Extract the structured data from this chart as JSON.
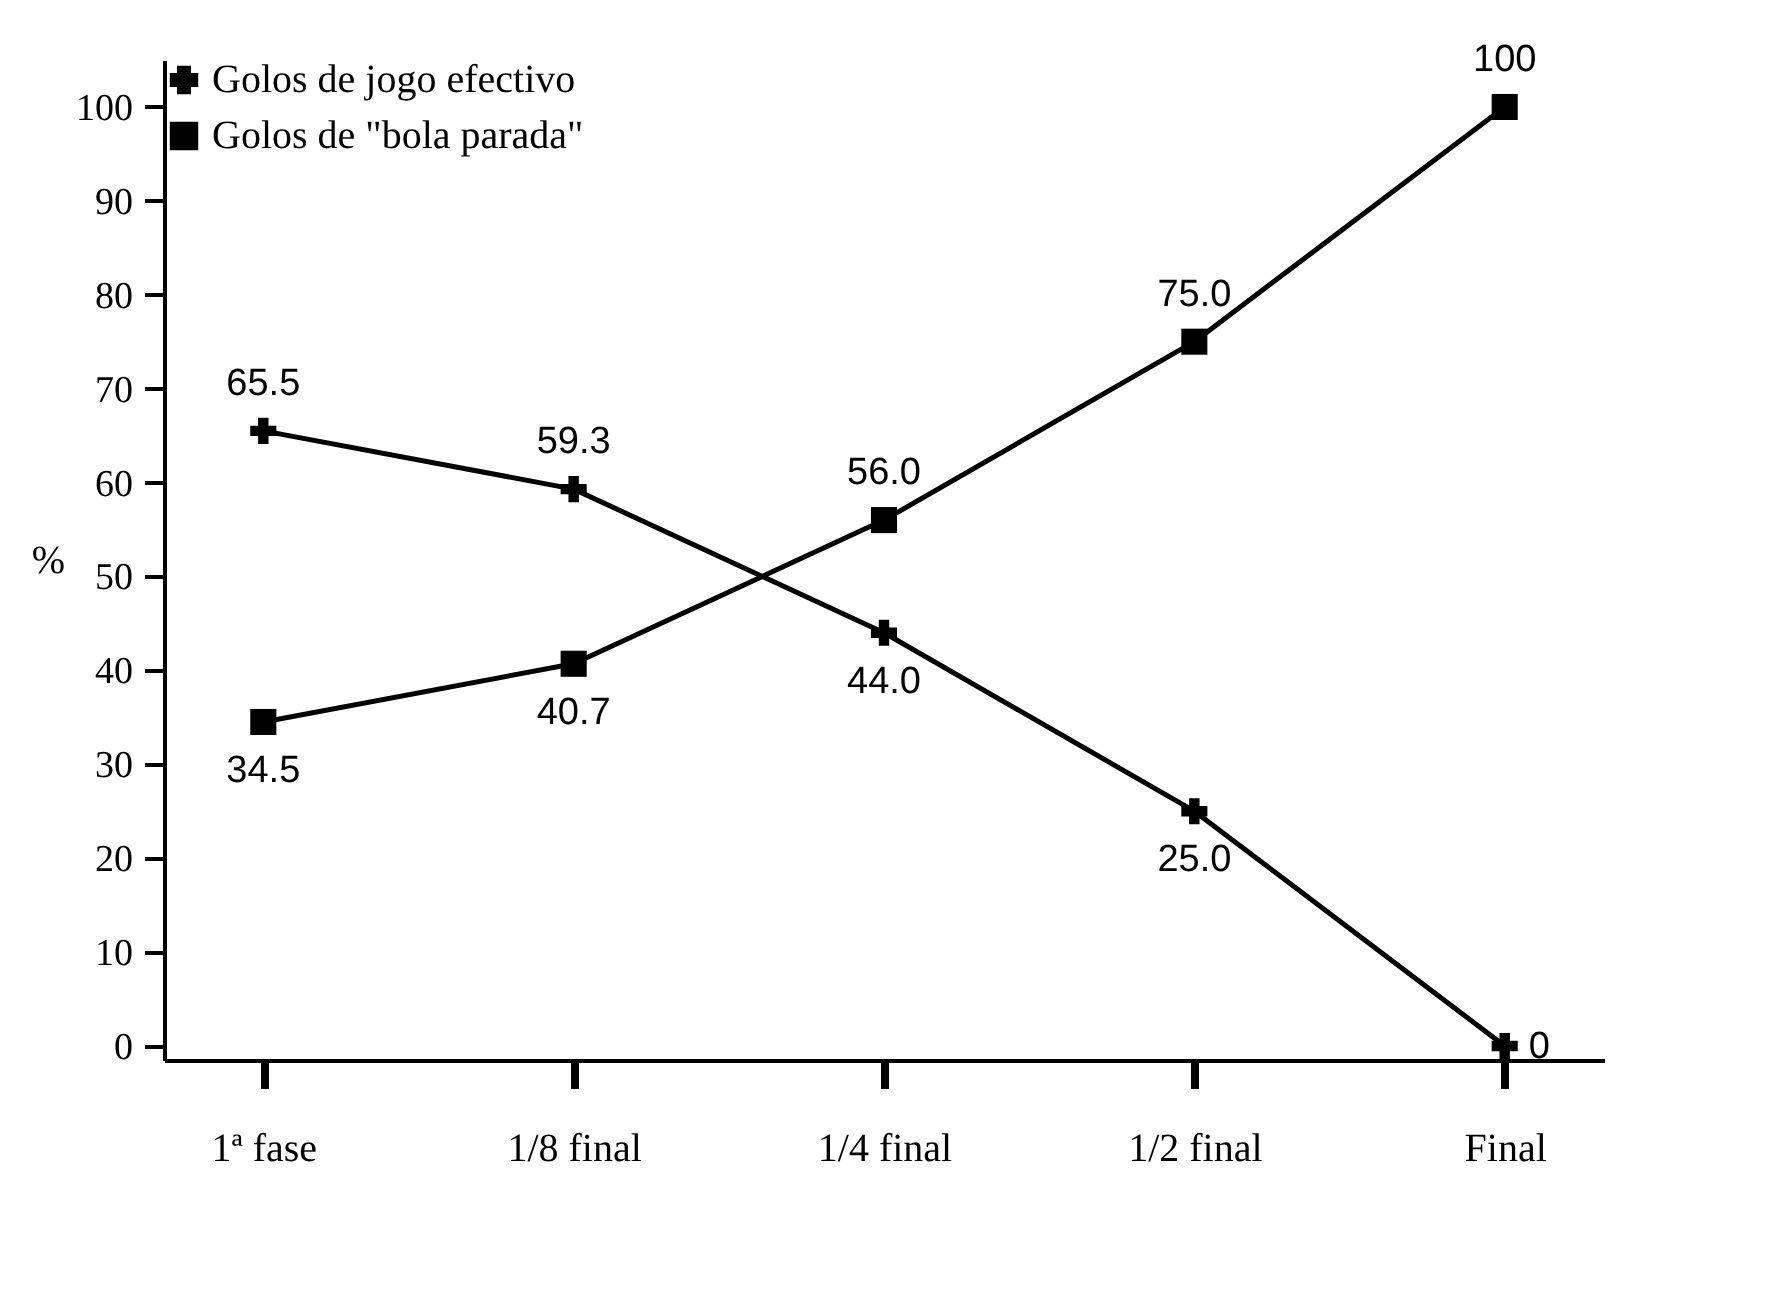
{
  "chart_data": {
    "type": "line",
    "ylabel": "%",
    "categories": [
      "1ª fase",
      "1/8 final",
      "1/4 final",
      "1/2 final",
      "Final"
    ],
    "ylim": [
      -1.5,
      105
    ],
    "yticks": [
      0,
      10,
      20,
      30,
      40,
      50,
      60,
      70,
      80,
      90,
      100
    ],
    "grid": false,
    "legend": "top left",
    "series": [
      {
        "name": "Golos de jogo efectivo",
        "color": "#000000",
        "marker": "cross",
        "values": [
          65.5,
          59.3,
          44.0,
          25.0,
          0
        ],
        "value_labels": [
          "65.5",
          "59.3",
          "44.0",
          "25.0",
          "0"
        ]
      },
      {
        "name": "Golos de \"bola parada\"",
        "color": "#000000",
        "marker": "square",
        "values": [
          34.5,
          40.7,
          56.0,
          75.0,
          100
        ],
        "value_labels": [
          "34.5",
          "40.7",
          "56.0",
          "75.0",
          "100"
        ]
      }
    ]
  }
}
